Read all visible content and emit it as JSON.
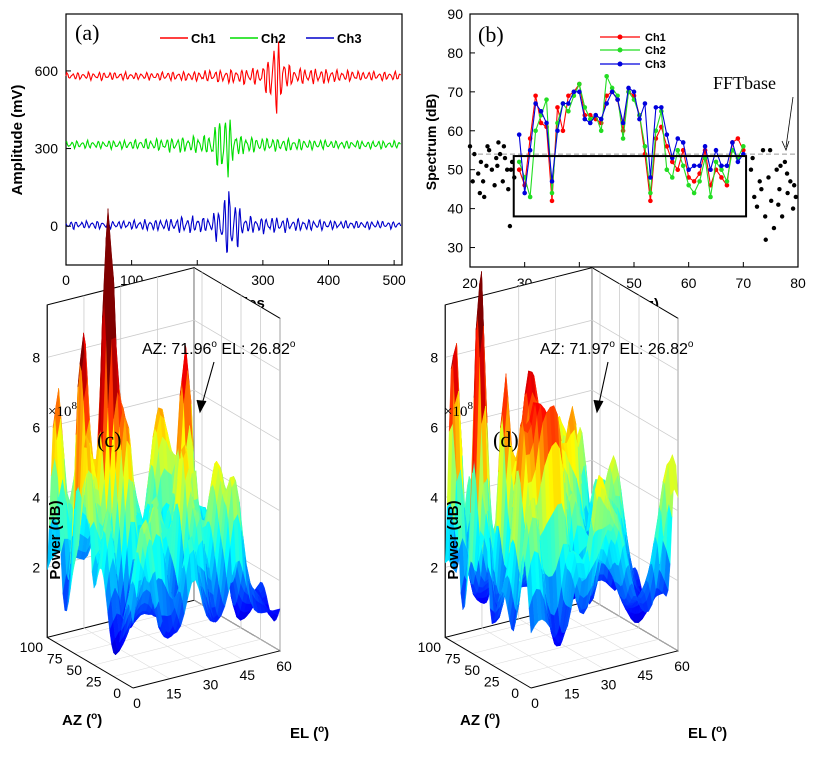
{
  "chart_data": [
    {
      "panel": "(a)",
      "type": "line",
      "xlabel": "Samples",
      "ylabel": "Amplitude (mV)",
      "xlim": [
        0,
        512
      ],
      "ylim": [
        -150,
        820
      ],
      "xticks": [
        "0",
        "100",
        "200",
        "300",
        "400",
        "500"
      ],
      "yticks": [
        "0",
        "300",
        "600"
      ],
      "legend": "top",
      "series": [
        {
          "name": "Ch1",
          "offset": 580,
          "color": "#ff0000",
          "burst_center": 320,
          "burst_amp": 150
        },
        {
          "name": "Ch2",
          "offset": 315,
          "color": "#00dd00",
          "burst_center": 240,
          "burst_amp": 160
        },
        {
          "name": "Ch3",
          "offset": 5,
          "color": "#0000cc",
          "burst_center": 248,
          "burst_amp": 170
        }
      ]
    },
    {
      "panel": "(b)",
      "type": "line",
      "xlabel": "f (MHz)",
      "ylabel": "Spectrum (dB)",
      "xlim": [
        20,
        80
      ],
      "ylim": [
        25,
        90
      ],
      "xticks": [
        "20",
        "30",
        "40",
        "50",
        "60",
        "70",
        "80"
      ],
      "yticks": [
        "30",
        "40",
        "50",
        "60",
        "70",
        "80",
        "90"
      ],
      "annotation": "FFTbase",
      "fft_base_level": 54,
      "box": {
        "x": [
          28,
          70.5
        ],
        "y": [
          38,
          53.5
        ]
      },
      "legend": "top-center",
      "freqs": [
        29,
        30,
        31,
        32,
        33,
        34,
        35,
        36,
        37,
        38,
        39,
        40,
        41,
        42,
        43,
        44,
        45,
        46,
        47,
        48,
        49,
        50,
        51,
        52,
        53,
        54,
        55,
        56,
        57,
        58,
        59,
        60,
        61,
        62,
        63,
        64,
        65,
        66,
        67,
        68,
        69,
        70
      ],
      "series": [
        {
          "name": "Ch1",
          "color": "#ff0000",
          "values": [
            50,
            46,
            58,
            69,
            62,
            61,
            42,
            66,
            60,
            69,
            70,
            72,
            64,
            64,
            63,
            62,
            69,
            70,
            68,
            60,
            70,
            69,
            64,
            54,
            42,
            58,
            61,
            56,
            52,
            50,
            55,
            48,
            47,
            49,
            55,
            46,
            50,
            48,
            46,
            57,
            58,
            55
          ]
        },
        {
          "name": "Ch2",
          "color": "#22dd22",
          "values": [
            52,
            48,
            43,
            60,
            64,
            68,
            44,
            62,
            67,
            65,
            69,
            72,
            66,
            63,
            64,
            60,
            74,
            71,
            69,
            58,
            70,
            68,
            64,
            56,
            44,
            60,
            65,
            50,
            48,
            55,
            51,
            46,
            44,
            47,
            53,
            43,
            52,
            50,
            47,
            55,
            53,
            56
          ]
        },
        {
          "name": "Ch3",
          "color": "#0000dd",
          "values": [
            59,
            44,
            55,
            67,
            65,
            62,
            47,
            60,
            67,
            67,
            70,
            70,
            63,
            62,
            64,
            63,
            67,
            70,
            68,
            62,
            71,
            70,
            63,
            67,
            48,
            66,
            66,
            59,
            53,
            58,
            57,
            50,
            51,
            51,
            56,
            50,
            55,
            51,
            51,
            57,
            52,
            54
          ]
        }
      ],
      "scatter": {
        "x": [
          20,
          20.8,
          21.5,
          22,
          22.4,
          23,
          23.5,
          24,
          24.5,
          25,
          25.5,
          26,
          26.4,
          26.8,
          27.3,
          27.7,
          28.1,
          20.5,
          21.8,
          23.2,
          24.8,
          26.2,
          27.5,
          22.6,
          25.2,
          27,
          71.4,
          72,
          72.5,
          73,
          73.6,
          74.1,
          74.6,
          75.1,
          75.6,
          76.1,
          76.6,
          77.1,
          77.6,
          78.1,
          78.6,
          79.1,
          79.6,
          71.7,
          73.3,
          74.9,
          76.4,
          78,
          79.3,
          74,
          76.8
        ],
        "y": [
          56,
          54,
          49,
          52,
          47,
          51,
          55,
          50,
          46,
          51,
          54,
          47,
          53,
          50,
          35.5,
          52,
          48,
          47,
          44,
          56,
          53,
          56,
          50,
          43,
          57,
          45,
          50,
          43,
          40.5,
          47,
          55,
          32,
          48,
          42,
          35,
          50,
          45,
          38,
          52,
          44,
          47,
          40,
          43,
          53,
          45,
          55,
          41,
          49,
          46,
          38,
          51
        ]
      }
    },
    {
      "panel": "(c)",
      "type": "surface3d",
      "zlabel": "Power (dB)",
      "xlabel": "AZ (o)",
      "ylabel": "EL (o)",
      "zscale": "×10^8",
      "zticks": [
        "2",
        "4",
        "6",
        "8"
      ],
      "az_ticks": [
        "0",
        "25",
        "50",
        "75",
        "100"
      ],
      "el_ticks": [
        "0",
        "15",
        "30",
        "45",
        "60"
      ],
      "peak_label": "AZ: 71.96°  EL: 26.82°",
      "peak_az": 71.96,
      "peak_el": 26.82
    },
    {
      "panel": "(d)",
      "type": "surface3d",
      "zlabel": "Power (dB)",
      "xlabel": "AZ (o)",
      "ylabel": "EL (o)",
      "zscale": "×10^8",
      "zticks": [
        "2",
        "4",
        "6",
        "8"
      ],
      "az_ticks": [
        "0",
        "25",
        "50",
        "75",
        "100"
      ],
      "el_ticks": [
        "0",
        "15",
        "30",
        "45",
        "60"
      ],
      "peak_label": "AZ: 71.97°  EL: 26.82°",
      "peak_az": 71.97,
      "peak_el": 26.82
    }
  ],
  "labels": {
    "a": {
      "panel": "(a)",
      "xlabel": "Samples",
      "ylabel": "Amplitude (mV)"
    },
    "b": {
      "panel": "(b)",
      "xlabel": "f (MHz)",
      "ylabel": "Spectrum (dB)",
      "fft": "FFTbase"
    },
    "c": {
      "panel": "(c)",
      "az": "AZ: 71.96",
      "el": "EL: 26.82",
      "deg": "o",
      "zlabel": "Power (dB)",
      "scale": "×10",
      "exp": "8",
      "xname": "AZ (",
      "yname": "EL (",
      "close": ")"
    },
    "d": {
      "panel": "(d)",
      "az": "AZ: 71.97",
      "el": "EL: 26.82",
      "deg": "o",
      "zlabel": "Power (dB)",
      "scale": "×10",
      "exp": "8",
      "xname": "AZ (",
      "yname": "EL (",
      "close": ")"
    }
  }
}
